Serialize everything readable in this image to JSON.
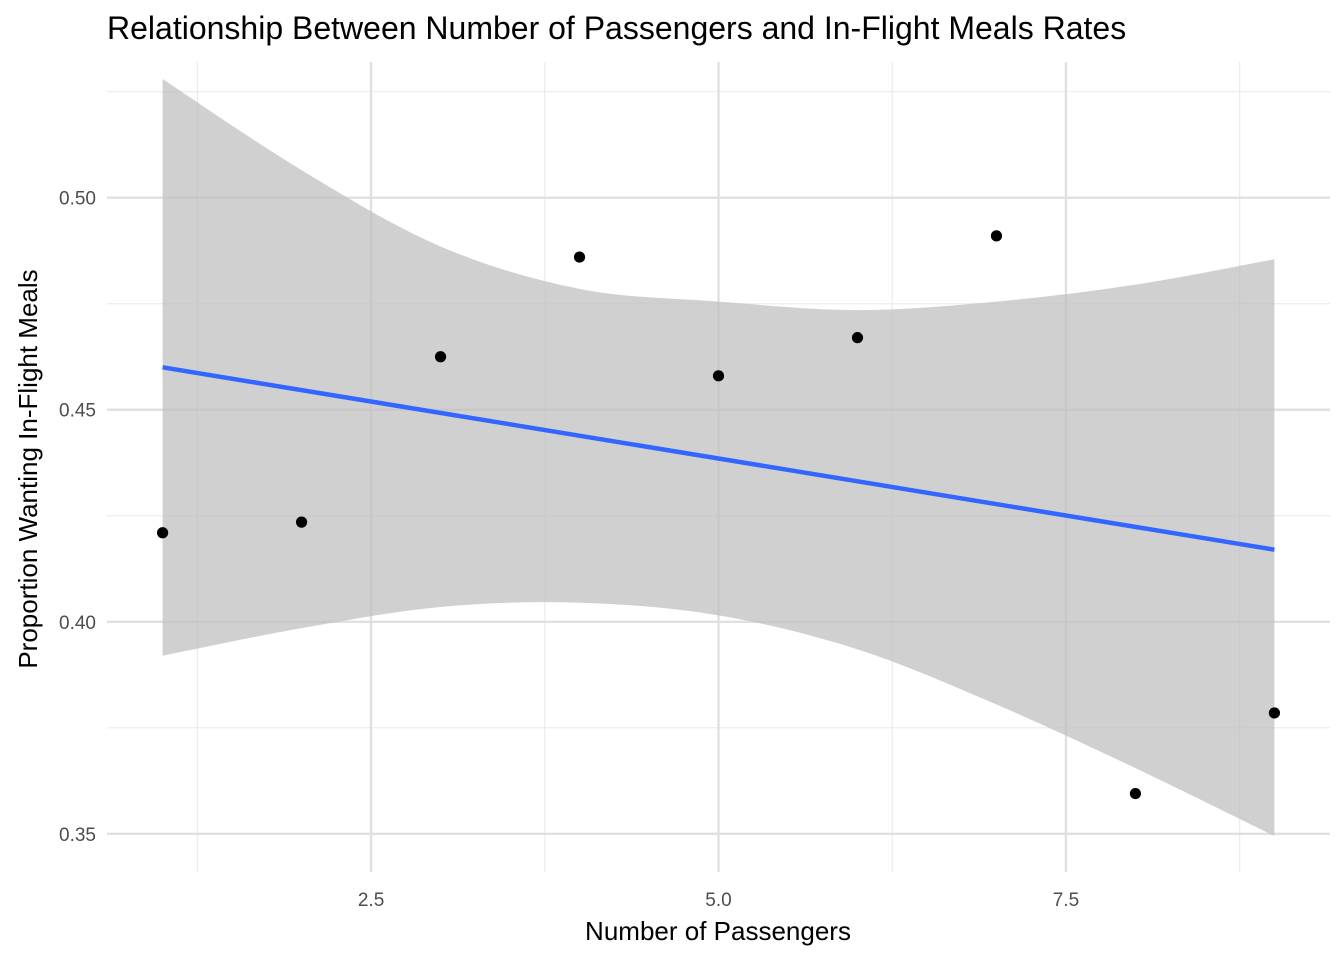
{
  "chart_data": {
    "type": "scatter",
    "title": "Relationship Between Number of Passengers and In-Flight Meals Rates",
    "xlabel": "Number of Passengers",
    "ylabel": "Proportion Wanting In-Flight Meals",
    "x_ticks": [
      2.5,
      5.0,
      7.5
    ],
    "x_tick_labels": [
      "2.5",
      "5.0",
      "7.5"
    ],
    "y_ticks": [
      0.35,
      0.4,
      0.45,
      0.5
    ],
    "y_tick_labels": [
      "0.35",
      "0.40",
      "0.45",
      "0.50"
    ],
    "xlim": [
      0.6,
      9.4
    ],
    "ylim": [
      0.341,
      0.532
    ],
    "grid": true,
    "series": [
      {
        "type": "scatter",
        "x": [
          1,
          2,
          3,
          4,
          5,
          6,
          7,
          8,
          9
        ],
        "y": [
          0.421,
          0.4235,
          0.4625,
          0.486,
          0.458,
          0.467,
          0.491,
          0.3595,
          0.3785
        ]
      }
    ],
    "trend_line": {
      "x": [
        1,
        9
      ],
      "y": [
        0.46,
        0.417
      ],
      "color": "#3366ff"
    },
    "confidence_band": {
      "x": [
        1,
        2,
        3,
        4,
        5,
        6,
        7,
        8,
        9
      ],
      "upper": [
        0.528,
        0.5065,
        0.4885,
        0.4785,
        0.4755,
        0.4735,
        0.4755,
        0.4795,
        0.4855
      ],
      "lower": [
        0.392,
        0.3985,
        0.4035,
        0.4045,
        0.4015,
        0.3935,
        0.3805,
        0.3655,
        0.3495
      ],
      "color": "#bebebe"
    },
    "point_color": "#000000"
  }
}
